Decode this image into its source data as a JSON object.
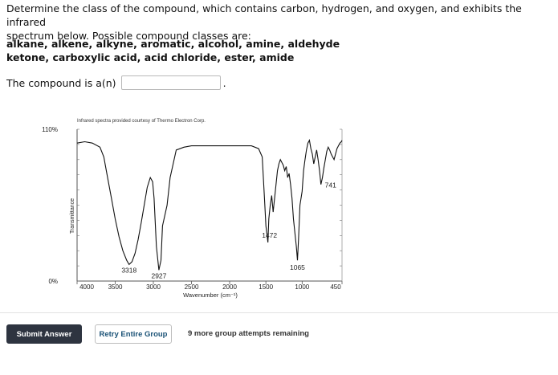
{
  "question": {
    "line1": "Determine the class of the compound, which contains carbon, hydrogen, and oxygen, and exhibits the infrared",
    "line2": "spectrum below. Possible compound classes are:",
    "classes_line1": "alkane, alkene, alkyne, aromatic, alcohol, amine, aldehyde",
    "classes_line2": "ketone, carboxylic acid, acid chloride, ester, amide",
    "answer_label": "The compound is a(n)",
    "answer_value": "",
    "answer_suffix": "."
  },
  "chart_data": {
    "type": "line",
    "title": "Infrared spectra provided courtesy of Thermo Electron Corp.",
    "xlabel": "Wavenumber (cm⁻¹)",
    "ylabel": "Transmittance",
    "x_ticks": [
      4000,
      3500,
      3000,
      2500,
      2000,
      1500,
      1000,
      450
    ],
    "y_ticks": [
      "110%",
      "0%"
    ],
    "xlim": [
      4000,
      450
    ],
    "series": [
      {
        "x": [
          4000,
          3900,
          3800,
          3700,
          3650,
          3600,
          3550,
          3500,
          3450,
          3400,
          3350,
          3318,
          3280,
          3240,
          3200,
          3160,
          3120,
          3080,
          3040,
          3010,
          2990,
          2960,
          2927,
          2900,
          2880,
          2860,
          2820,
          2780,
          2700,
          2600,
          2500,
          2400,
          2300,
          2200,
          2100,
          2000,
          1900,
          1800,
          1700,
          1600,
          1550,
          1520,
          1500,
          1472,
          1460,
          1440,
          1420,
          1400,
          1380,
          1360,
          1340,
          1320,
          1300,
          1280,
          1260,
          1240,
          1220,
          1200,
          1180,
          1160,
          1140,
          1120,
          1100,
          1080,
          1065,
          1050,
          1030,
          1000,
          980,
          960,
          940,
          920,
          900,
          880,
          860,
          840,
          820,
          800,
          780,
          760,
          741,
          720,
          700,
          680,
          660,
          640,
          620,
          600,
          580,
          560,
          540,
          520,
          500,
          480,
          460,
          450
        ],
        "y": [
          100,
          101,
          100,
          97,
          90,
          75,
          60,
          45,
          32,
          22,
          15,
          12,
          14,
          20,
          30,
          42,
          55,
          68,
          75,
          72,
          60,
          25,
          8,
          15,
          40,
          45,
          55,
          75,
          95,
          97,
          98,
          98,
          98,
          98,
          98,
          98,
          98,
          98,
          98,
          96,
          90,
          60,
          40,
          28,
          45,
          55,
          62,
          50,
          60,
          70,
          80,
          85,
          88,
          86,
          84,
          80,
          83,
          75,
          78,
          70,
          60,
          45,
          35,
          25,
          15,
          30,
          55,
          65,
          80,
          88,
          95,
          100,
          102,
          96,
          92,
          85,
          90,
          95,
          88,
          80,
          70,
          75,
          82,
          88,
          94,
          97,
          95,
          92,
          90,
          88,
          92,
          96,
          98,
          100,
          101,
          102
        ]
      }
    ],
    "annotations": [
      {
        "label": "3318",
        "x": 3318,
        "y": 12
      },
      {
        "label": "2927",
        "x": 2927,
        "y": 8
      },
      {
        "label": "1472",
        "x": 1472,
        "y": 28
      },
      {
        "label": "1065",
        "x": 1065,
        "y": 15
      },
      {
        "label": "741",
        "x": 741,
        "y": 70
      }
    ],
    "grid": false
  },
  "buttons": {
    "submit": "Submit Answer",
    "retry": "Retry Entire Group"
  },
  "status": {
    "remaining": "9 more group attempts remaining"
  }
}
